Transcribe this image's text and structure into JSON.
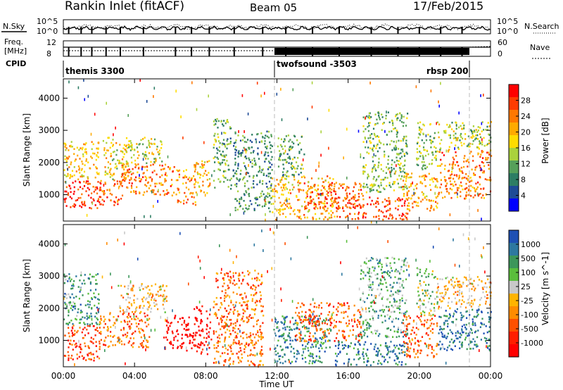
{
  "header": {
    "title": "Rankin Inlet (fitACF)",
    "beam": "Beam 05",
    "date": "17/Feb/2015"
  },
  "top_panels": {
    "nsky_label": "N.Sky",
    "nsky_left_ticks": [
      "10^5",
      "10^0"
    ],
    "nsky_right_ticks": [
      "10^5",
      "10^0"
    ],
    "nsearch_label": "N.Search",
    "freq_label": "Freq.",
    "freq_unit": "[MHz]",
    "freq_ticks": [
      "12",
      "8"
    ],
    "nave_ticks": [
      "60",
      "0"
    ],
    "nave_label": "Nave",
    "cpid_label": "CPID",
    "cpid_programs": [
      {
        "name": "themis 3300",
        "start_hour": 0
      },
      {
        "name": "twofsound -3503",
        "start_hour": 12
      },
      {
        "name": "rbsp 200",
        "start_hour": 21
      }
    ]
  },
  "chart_data": [
    {
      "type": "heatmap",
      "panel": "power",
      "xlabel": "",
      "ylabel": "Slant Range [km]",
      "xlim": [
        0,
        24
      ],
      "ylim": [
        180,
        4600
      ],
      "yticks": [
        1000,
        2000,
        3000,
        4000
      ],
      "colorbar_label": "Power [dB]",
      "colorbar_ticks": [
        "28",
        "24",
        "20",
        "16",
        "12",
        "8",
        "4"
      ],
      "colorbar_colors": [
        "#ff0000",
        "#ff3c00",
        "#ff7800",
        "#ffaa00",
        "#ffdc00",
        "#aad23c",
        "#56a05a",
        "#2d7d64",
        "#1e4b96",
        "#0000ff"
      ],
      "scatter_regions": [
        {
          "t_start": 0,
          "t_end": 2.1,
          "r_min": 600,
          "r_max": 1500,
          "level": 0.9
        },
        {
          "t_start": 0,
          "t_end": 2.0,
          "r_min": 1500,
          "r_max": 2700,
          "level": 0.6
        },
        {
          "t_start": 2.0,
          "t_end": 3.3,
          "r_min": 700,
          "r_max": 1500,
          "level": 0.8
        },
        {
          "t_start": 2.2,
          "t_end": 3.8,
          "r_min": 1500,
          "r_max": 2800,
          "level": 0.55
        },
        {
          "t_start": 3.2,
          "t_end": 6.2,
          "r_min": 1000,
          "r_max": 2000,
          "level": 0.75
        },
        {
          "t_start": 3.5,
          "t_end": 5.5,
          "r_min": 2000,
          "r_max": 2800,
          "level": 0.5
        },
        {
          "t_start": 6.3,
          "t_end": 7.4,
          "r_min": 700,
          "r_max": 1800,
          "level": 0.7
        },
        {
          "t_start": 7.3,
          "t_end": 8.2,
          "r_min": 1000,
          "r_max": 2100,
          "level": 0.6
        },
        {
          "t_start": 8.4,
          "t_end": 9.4,
          "r_min": 1200,
          "r_max": 3400,
          "level": 0.35
        },
        {
          "t_start": 9.5,
          "t_end": 11.7,
          "r_min": 500,
          "r_max": 3000,
          "level": 0.3
        },
        {
          "t_start": 11.7,
          "t_end": 15.2,
          "r_min": 250,
          "r_max": 1600,
          "level": 0.65
        },
        {
          "t_start": 12.0,
          "t_end": 13.5,
          "r_min": 1600,
          "r_max": 2900,
          "level": 0.35
        },
        {
          "t_start": 13.5,
          "t_end": 16.8,
          "r_min": 600,
          "r_max": 1400,
          "level": 0.8
        },
        {
          "t_start": 15.2,
          "t_end": 19.3,
          "r_min": 250,
          "r_max": 950,
          "level": 0.85
        },
        {
          "t_start": 16.8,
          "t_end": 19.3,
          "r_min": 1100,
          "r_max": 3600,
          "level": 0.4
        },
        {
          "t_start": 19.0,
          "t_end": 21.0,
          "r_min": 500,
          "r_max": 1700,
          "level": 0.65
        },
        {
          "t_start": 19.8,
          "t_end": 21.0,
          "r_min": 1800,
          "r_max": 3300,
          "level": 0.45
        },
        {
          "t_start": 21.0,
          "t_end": 24.0,
          "r_min": 900,
          "r_max": 2400,
          "level": 0.75
        },
        {
          "t_start": 21.0,
          "t_end": 24.0,
          "r_min": 2400,
          "r_max": 3300,
          "level": 0.45
        }
      ]
    },
    {
      "type": "heatmap",
      "panel": "velocity",
      "xlabel": "Time UT",
      "ylabel": "Slant Range [km]",
      "xlim": [
        0,
        24
      ],
      "ylim": [
        180,
        4600
      ],
      "yticks": [
        1000,
        2000,
        3000,
        4000
      ],
      "xticks": [
        "00:00",
        "04:00",
        "08:00",
        "12:00",
        "16:00",
        "20:00",
        "00:00"
      ],
      "colorbar_label": "Velocity [m s^-1]",
      "colorbar_ticks": [
        "1000",
        "500",
        "100",
        "25",
        "-25",
        "-100",
        "-500",
        "-1000"
      ],
      "colorbar_colors": [
        "#1e50b4",
        "#2d78a0",
        "#3c965a",
        "#5abe3c",
        "#c8c8c8",
        "#ffb400",
        "#ff8c00",
        "#ff5000",
        "#ff1e00",
        "#ff0000"
      ],
      "scatter_regions": [
        {
          "t_start": 0,
          "t_end": 2.0,
          "r_min": 400,
          "r_max": 1500,
          "level": 0.2
        },
        {
          "t_start": 0,
          "t_end": 2.0,
          "r_min": 1500,
          "r_max": 3100,
          "level": 0.75
        },
        {
          "t_start": 2.0,
          "t_end": 4.8,
          "r_min": 800,
          "r_max": 1900,
          "level": 0.3
        },
        {
          "t_start": 3.0,
          "t_end": 5.8,
          "r_min": 1900,
          "r_max": 2800,
          "level": 0.45
        },
        {
          "t_start": 5.6,
          "t_end": 7.3,
          "r_min": 700,
          "r_max": 1800,
          "level": 0.02
        },
        {
          "t_start": 7.3,
          "t_end": 8.3,
          "r_min": 600,
          "r_max": 2100,
          "level": 0.05
        },
        {
          "t_start": 8.4,
          "t_end": 11.2,
          "r_min": 250,
          "r_max": 3200,
          "level": 0.3
        },
        {
          "t_start": 11.8,
          "t_end": 15.0,
          "r_min": 300,
          "r_max": 1800,
          "level": 0.8
        },
        {
          "t_start": 13.0,
          "t_end": 16.8,
          "r_min": 1000,
          "r_max": 2200,
          "level": 0.25
        },
        {
          "t_start": 15.2,
          "t_end": 19.3,
          "r_min": 250,
          "r_max": 1000,
          "level": 0.85
        },
        {
          "t_start": 16.6,
          "t_end": 19.3,
          "r_min": 1100,
          "r_max": 3600,
          "level": 0.7
        },
        {
          "t_start": 19.0,
          "t_end": 21.0,
          "r_min": 500,
          "r_max": 1800,
          "level": 0.25
        },
        {
          "t_start": 19.8,
          "t_end": 21.0,
          "r_min": 1800,
          "r_max": 3300,
          "level": 0.6
        },
        {
          "t_start": 21.0,
          "t_end": 24.0,
          "r_min": 700,
          "r_max": 2000,
          "level": 0.85
        },
        {
          "t_start": 21.0,
          "t_end": 24.0,
          "r_min": 2000,
          "r_max": 3000,
          "level": 0.45
        }
      ]
    }
  ]
}
